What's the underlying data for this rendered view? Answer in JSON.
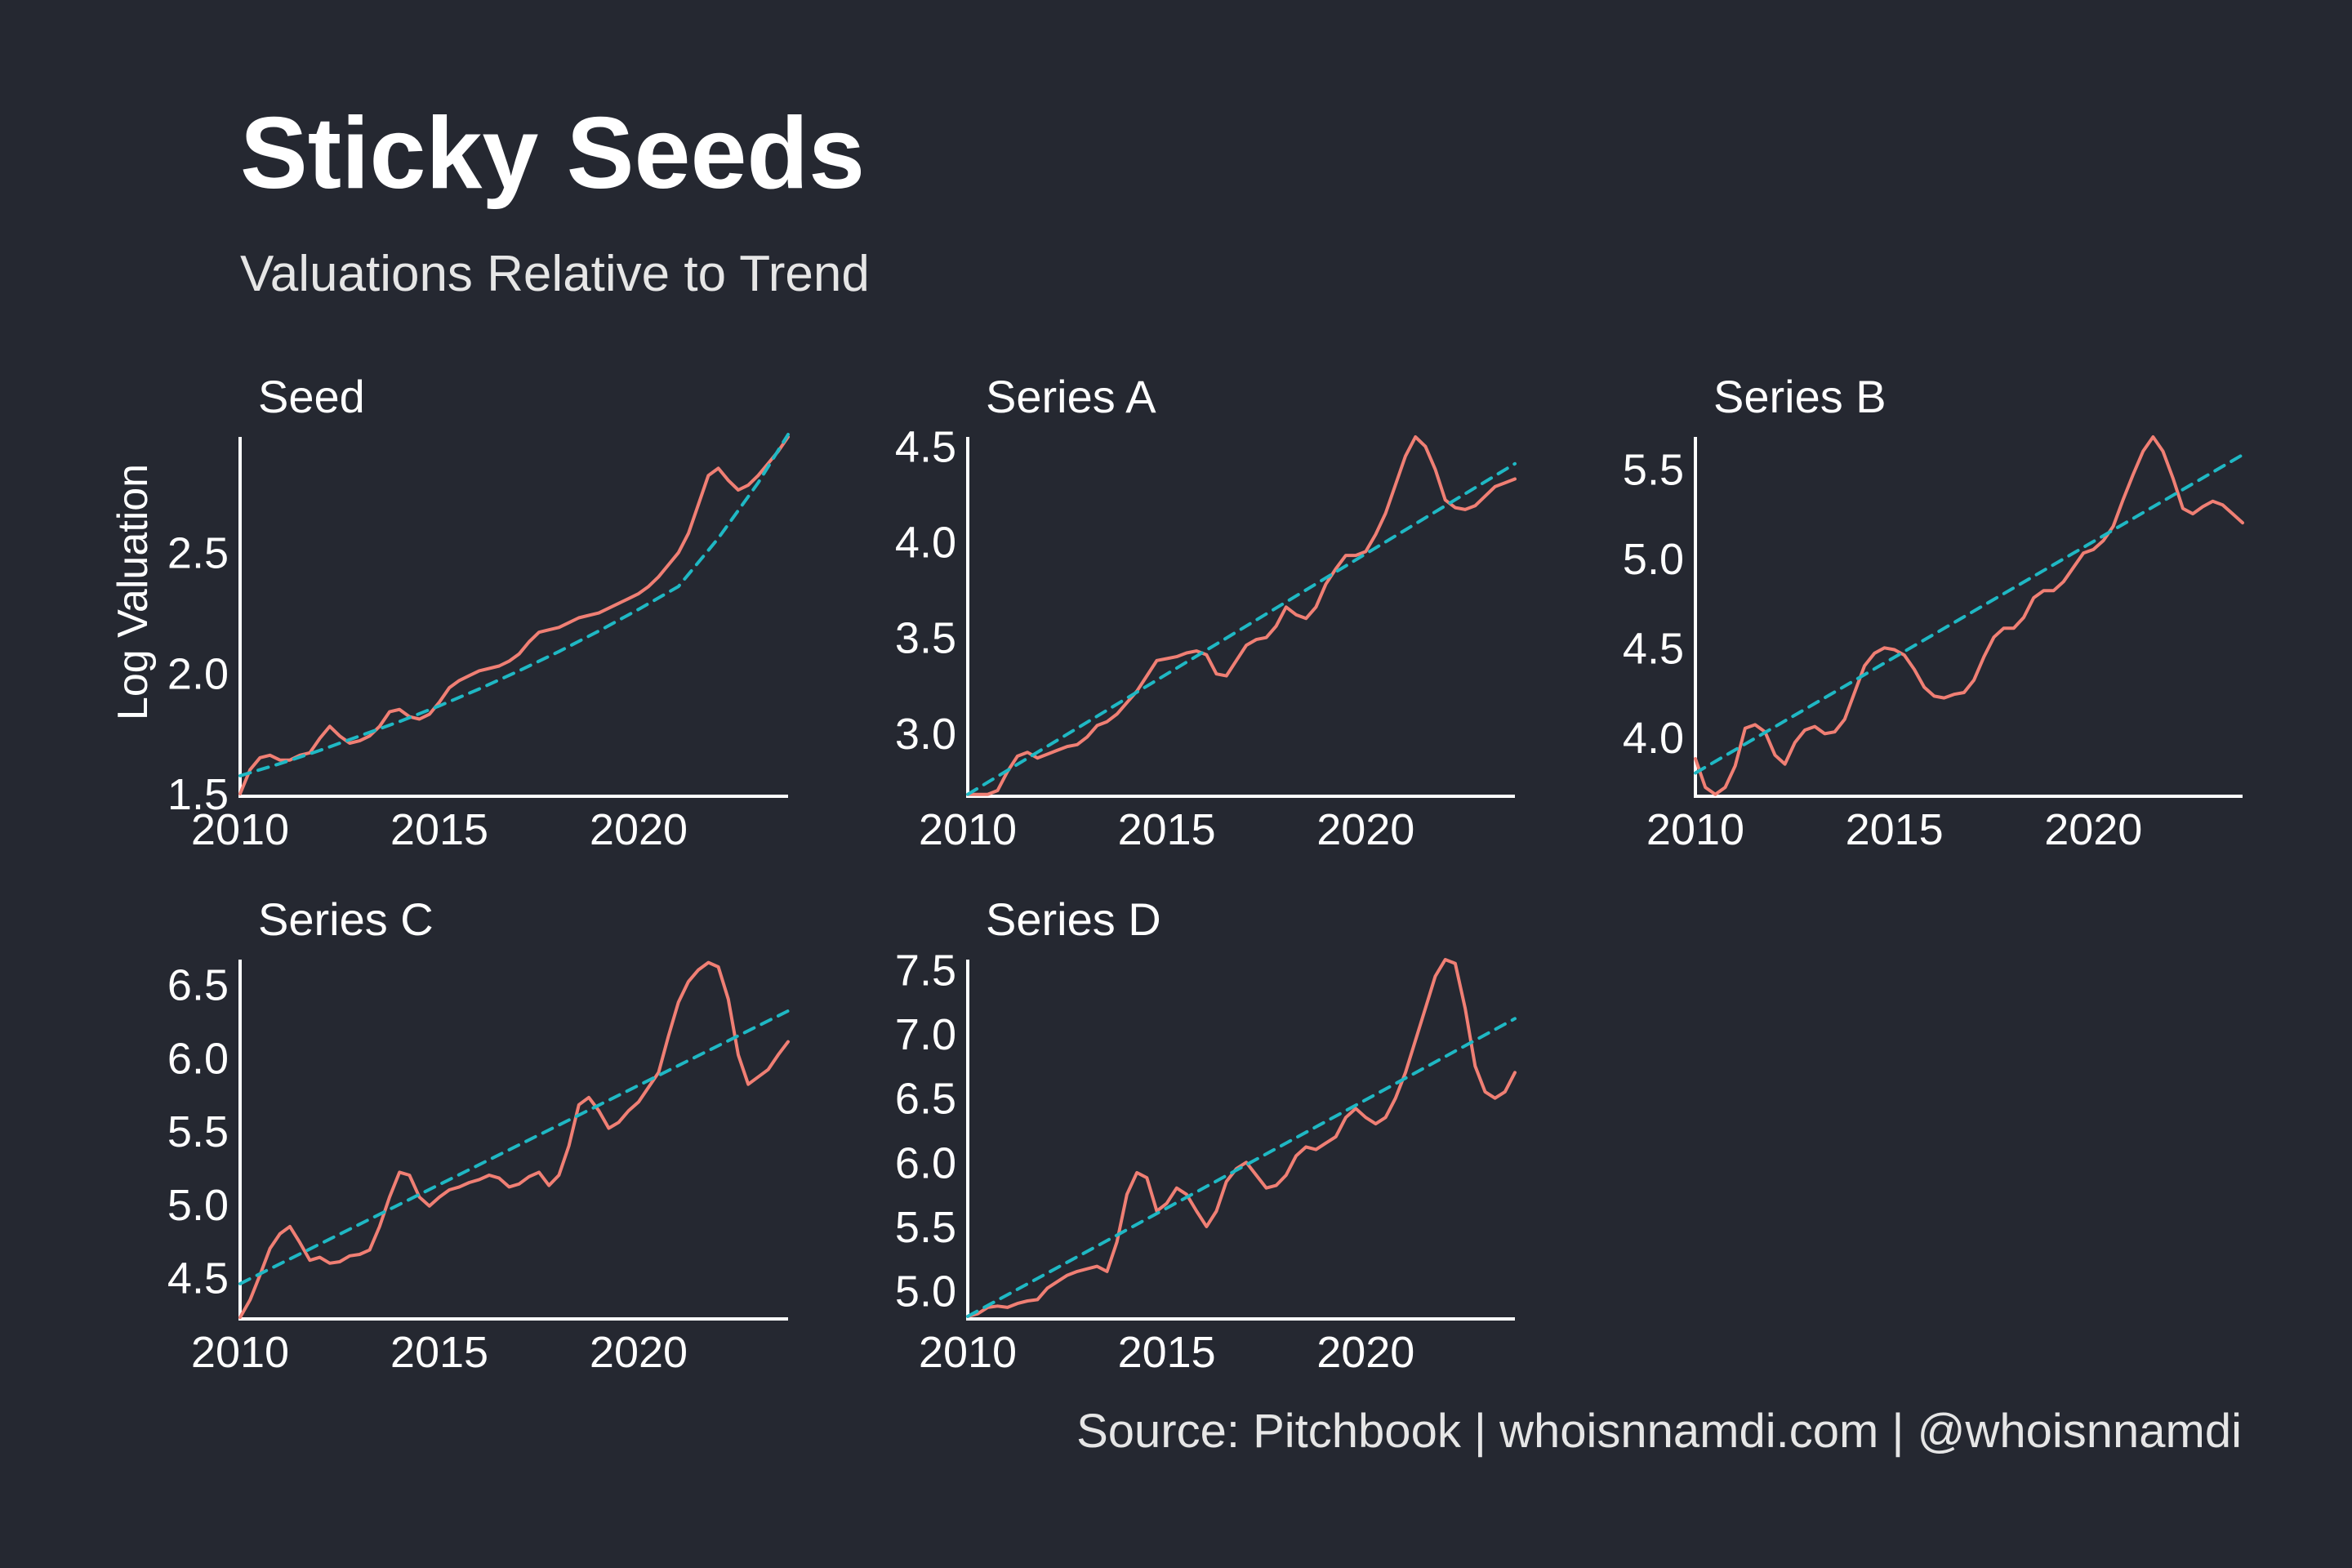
{
  "title": "Sticky Seeds",
  "subtitle": "Valuations Relative to Trend",
  "caption": "Source: Pitchbook | whoisnnamdi.com | @whoisnnamdi",
  "colors": {
    "background": "#252831",
    "actual": "#f07f74",
    "trend": "#1fb8c4",
    "axis": "#ffffff"
  },
  "chart_data": [
    {
      "type": "line",
      "panel": "Seed",
      "title": "Seed",
      "ylabel": "Log Valuation",
      "xlabel": "",
      "xlim": [
        2010,
        2023.75
      ],
      "ylim": [
        1.49,
        2.98
      ],
      "xticks": [
        2010,
        2015,
        2020
      ],
      "xtick_labels": [
        "2010",
        "2015",
        "2020"
      ],
      "yticks": [
        1.5,
        2.0,
        2.5
      ],
      "ytick_labels": [
        "1.5",
        "2.0",
        "2.5"
      ],
      "series": [
        {
          "name": "Log Valuation",
          "style": "solid",
          "x": [
            2010,
            2010.25,
            2010.5,
            2010.75,
            2011,
            2011.25,
            2011.5,
            2011.75,
            2012,
            2012.25,
            2012.5,
            2012.75,
            2013,
            2013.25,
            2013.5,
            2013.75,
            2014,
            2014.25,
            2014.5,
            2014.75,
            2015,
            2015.25,
            2015.5,
            2015.75,
            2016,
            2016.25,
            2016.5,
            2016.75,
            2017,
            2017.25,
            2017.5,
            2017.75,
            2018,
            2018.25,
            2018.5,
            2018.75,
            2019,
            2019.25,
            2019.5,
            2019.75,
            2020,
            2020.25,
            2020.5,
            2020.75,
            2021,
            2021.25,
            2021.5,
            2021.75,
            2022,
            2022.25,
            2022.5,
            2022.75,
            2023,
            2023.25,
            2023.5,
            2023.75
          ],
          "y": [
            1.5,
            1.6,
            1.65,
            1.66,
            1.64,
            1.64,
            1.66,
            1.67,
            1.73,
            1.78,
            1.74,
            1.71,
            1.72,
            1.74,
            1.78,
            1.84,
            1.85,
            1.82,
            1.81,
            1.83,
            1.88,
            1.94,
            1.97,
            1.99,
            2.01,
            2.02,
            2.03,
            2.05,
            2.08,
            2.13,
            2.17,
            2.18,
            2.19,
            2.21,
            2.23,
            2.24,
            2.25,
            2.27,
            2.29,
            2.31,
            2.33,
            2.36,
            2.4,
            2.45,
            2.5,
            2.58,
            2.7,
            2.82,
            2.85,
            2.8,
            2.76,
            2.78,
            2.82,
            2.87,
            2.92,
            2.98
          ]
        },
        {
          "name": "Trend",
          "style": "dashed",
          "x": [
            2010,
            2011,
            2012,
            2013,
            2014,
            2015,
            2016,
            2017,
            2018,
            2019,
            2020,
            2021,
            2022,
            2023,
            2023.75
          ],
          "y": [
            1.575,
            1.625,
            1.68,
            1.74,
            1.8,
            1.865,
            1.935,
            2.01,
            2.09,
            2.175,
            2.265,
            2.36,
            2.56,
            2.79,
            2.99
          ]
        }
      ]
    },
    {
      "type": "line",
      "panel": "Series A",
      "title": "Series A",
      "ylabel": "",
      "xlabel": "",
      "xlim": [
        2010,
        2023.75
      ],
      "ylim": [
        2.67,
        4.55
      ],
      "xticks": [
        2010,
        2015,
        2020
      ],
      "xtick_labels": [
        "2010",
        "2015",
        "2020"
      ],
      "yticks": [
        3.0,
        3.5,
        4.0,
        4.5
      ],
      "ytick_labels": [
        "3.0",
        "3.5",
        "4.0",
        "4.5"
      ],
      "series": [
        {
          "name": "Log Valuation",
          "style": "solid",
          "x": [
            2010,
            2010.25,
            2010.5,
            2010.75,
            2011,
            2011.25,
            2011.5,
            2011.75,
            2012,
            2012.25,
            2012.5,
            2012.75,
            2013,
            2013.25,
            2013.5,
            2013.75,
            2014,
            2014.25,
            2014.5,
            2014.75,
            2015,
            2015.25,
            2015.5,
            2015.75,
            2016,
            2016.25,
            2016.5,
            2016.75,
            2017,
            2017.25,
            2017.5,
            2017.75,
            2018,
            2018.25,
            2018.5,
            2018.75,
            2019,
            2019.25,
            2019.5,
            2019.75,
            2020,
            2020.25,
            2020.5,
            2020.75,
            2021,
            2021.25,
            2021.5,
            2021.75,
            2022,
            2022.25,
            2022.5,
            2022.75,
            2023,
            2023.25,
            2023.5,
            2023.75
          ],
          "y": [
            2.68,
            2.68,
            2.68,
            2.7,
            2.8,
            2.88,
            2.9,
            2.87,
            2.89,
            2.91,
            2.93,
            2.94,
            2.98,
            3.04,
            3.06,
            3.1,
            3.16,
            3.22,
            3.3,
            3.38,
            3.39,
            3.4,
            3.42,
            3.43,
            3.41,
            3.31,
            3.3,
            3.38,
            3.46,
            3.49,
            3.5,
            3.56,
            3.66,
            3.62,
            3.6,
            3.66,
            3.78,
            3.86,
            3.93,
            3.93,
            3.95,
            4.04,
            4.15,
            4.3,
            4.45,
            4.55,
            4.5,
            4.38,
            4.22,
            4.18,
            4.17,
            4.19,
            4.24,
            4.29,
            4.31,
            4.33
          ]
        },
        {
          "name": "Trend",
          "style": "dashed",
          "x": [
            2010,
            2023.75
          ],
          "y": [
            2.68,
            4.41
          ]
        }
      ]
    },
    {
      "type": "line",
      "panel": "Series B",
      "title": "Series B",
      "ylabel": "",
      "xlabel": "",
      "xlim": [
        2010,
        2023.75
      ],
      "ylim": [
        3.67,
        5.68
      ],
      "xticks": [
        2010,
        2015,
        2020
      ],
      "xtick_labels": [
        "2010",
        "2015",
        "2020"
      ],
      "yticks": [
        4.0,
        4.5,
        5.0,
        5.5
      ],
      "ytick_labels": [
        "4.0",
        "4.5",
        "5.0",
        "5.5"
      ],
      "series": [
        {
          "name": "Log Valuation",
          "style": "solid",
          "x": [
            2010,
            2010.25,
            2010.5,
            2010.75,
            2011,
            2011.25,
            2011.5,
            2011.75,
            2012,
            2012.25,
            2012.5,
            2012.75,
            2013,
            2013.25,
            2013.5,
            2013.75,
            2014,
            2014.25,
            2014.5,
            2014.75,
            2015,
            2015.25,
            2015.5,
            2015.75,
            2016,
            2016.25,
            2016.5,
            2016.75,
            2017,
            2017.25,
            2017.5,
            2017.75,
            2018,
            2018.25,
            2018.5,
            2018.75,
            2019,
            2019.25,
            2019.5,
            2019.75,
            2020,
            2020.25,
            2020.5,
            2020.75,
            2021,
            2021.25,
            2021.5,
            2021.75,
            2022,
            2022.25,
            2022.5,
            2022.75,
            2023,
            2023.25,
            2023.5,
            2023.75
          ],
          "y": [
            3.88,
            3.72,
            3.68,
            3.72,
            3.84,
            4.05,
            4.07,
            4.03,
            3.9,
            3.85,
            3.97,
            4.04,
            4.06,
            4.02,
            4.03,
            4.1,
            4.25,
            4.4,
            4.47,
            4.5,
            4.49,
            4.46,
            4.38,
            4.28,
            4.23,
            4.22,
            4.24,
            4.25,
            4.32,
            4.45,
            4.56,
            4.61,
            4.61,
            4.67,
            4.78,
            4.82,
            4.82,
            4.87,
            4.95,
            5.03,
            5.05,
            5.1,
            5.18,
            5.33,
            5.47,
            5.6,
            5.68,
            5.6,
            5.45,
            5.28,
            5.25,
            5.29,
            5.32,
            5.3,
            5.25,
            5.2
          ]
        },
        {
          "name": "Trend",
          "style": "dashed",
          "x": [
            2010,
            2023.75
          ],
          "y": [
            3.8,
            5.58
          ]
        }
      ]
    },
    {
      "type": "line",
      "panel": "Series C",
      "title": "Series C",
      "ylabel": "",
      "xlabel": "",
      "xlim": [
        2010,
        2023.75
      ],
      "ylim": [
        4.22,
        6.67
      ],
      "xticks": [
        2010,
        2015,
        2020
      ],
      "xtick_labels": [
        "2010",
        "2015",
        "2020"
      ],
      "yticks": [
        4.5,
        5.0,
        5.5,
        6.0,
        6.5
      ],
      "ytick_labels": [
        "4.5",
        "5.0",
        "5.5",
        "6.0",
        "6.5"
      ],
      "series": [
        {
          "name": "Log Valuation",
          "style": "solid",
          "x": [
            2010,
            2010.25,
            2010.5,
            2010.75,
            2011,
            2011.25,
            2011.5,
            2011.75,
            2012,
            2012.25,
            2012.5,
            2012.75,
            2013,
            2013.25,
            2013.5,
            2013.75,
            2014,
            2014.25,
            2014.5,
            2014.75,
            2015,
            2015.25,
            2015.5,
            2015.75,
            2016,
            2016.25,
            2016.5,
            2016.75,
            2017,
            2017.25,
            2017.5,
            2017.75,
            2018,
            2018.25,
            2018.5,
            2018.75,
            2019,
            2019.25,
            2019.5,
            2019.75,
            2020,
            2020.25,
            2020.5,
            2020.75,
            2021,
            2021.25,
            2021.5,
            2021.75,
            2022,
            2022.25,
            2022.5,
            2022.75,
            2023,
            2023.25,
            2023.5,
            2023.75
          ],
          "y": [
            4.23,
            4.35,
            4.52,
            4.7,
            4.8,
            4.85,
            4.74,
            4.62,
            4.64,
            4.6,
            4.61,
            4.65,
            4.66,
            4.69,
            4.85,
            5.05,
            5.22,
            5.2,
            5.05,
            4.99,
            5.05,
            5.1,
            5.12,
            5.15,
            5.17,
            5.2,
            5.18,
            5.12,
            5.14,
            5.19,
            5.22,
            5.13,
            5.2,
            5.4,
            5.68,
            5.73,
            5.64,
            5.52,
            5.56,
            5.64,
            5.7,
            5.8,
            5.9,
            6.15,
            6.38,
            6.52,
            6.6,
            6.65,
            6.62,
            6.4,
            6.02,
            5.82,
            5.87,
            5.92,
            6.02,
            6.11
          ]
        },
        {
          "name": "Trend",
          "style": "dashed",
          "x": [
            2010,
            2023.75
          ],
          "y": [
            4.46,
            6.32
          ]
        }
      ]
    },
    {
      "type": "line",
      "panel": "Series D",
      "title": "Series D",
      "ylabel": "",
      "xlabel": "",
      "xlim": [
        2010,
        2023.75
      ],
      "ylim": [
        4.78,
        7.58
      ],
      "xticks": [
        2010,
        2015,
        2020
      ],
      "xtick_labels": [
        "2010",
        "2015",
        "2020"
      ],
      "yticks": [
        5.0,
        5.5,
        6.0,
        6.5,
        7.0,
        7.5
      ],
      "ytick_labels": [
        "5.0",
        "5.5",
        "6.0",
        "6.5",
        "7.0",
        "7.5"
      ],
      "series": [
        {
          "name": "Log Valuation",
          "style": "solid",
          "x": [
            2010,
            2010.25,
            2010.5,
            2010.75,
            2011,
            2011.25,
            2011.5,
            2011.75,
            2012,
            2012.25,
            2012.5,
            2012.75,
            2013,
            2013.25,
            2013.5,
            2013.75,
            2014,
            2014.25,
            2014.5,
            2014.75,
            2015,
            2015.25,
            2015.5,
            2015.75,
            2016,
            2016.25,
            2016.5,
            2016.75,
            2017,
            2017.25,
            2017.5,
            2017.75,
            2018,
            2018.25,
            2018.5,
            2018.75,
            2019,
            2019.25,
            2019.5,
            2019.75,
            2020,
            2020.25,
            2020.5,
            2020.75,
            2021,
            2021.25,
            2021.5,
            2021.75,
            2022,
            2022.25,
            2022.5,
            2022.75,
            2023,
            2023.25,
            2023.5,
            2023.75
          ],
          "y": [
            4.8,
            4.82,
            4.87,
            4.88,
            4.87,
            4.9,
            4.92,
            4.93,
            5.02,
            5.07,
            5.12,
            5.15,
            5.17,
            5.19,
            5.15,
            5.38,
            5.75,
            5.92,
            5.88,
            5.62,
            5.68,
            5.8,
            5.75,
            5.62,
            5.5,
            5.62,
            5.85,
            5.95,
            6.0,
            5.9,
            5.8,
            5.82,
            5.9,
            6.05,
            6.12,
            6.1,
            6.15,
            6.2,
            6.35,
            6.42,
            6.35,
            6.3,
            6.35,
            6.5,
            6.7,
            6.95,
            7.2,
            7.45,
            7.58,
            7.55,
            7.2,
            6.75,
            6.55,
            6.5,
            6.55,
            6.7
          ]
        },
        {
          "name": "Trend",
          "style": "dashed",
          "x": [
            2010,
            2023.75
          ],
          "y": [
            4.8,
            7.12
          ]
        }
      ]
    }
  ]
}
